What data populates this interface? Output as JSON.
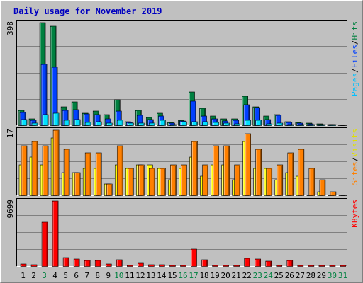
{
  "chart_data": {
    "type": "bar",
    "title": "Daily usage for November 2019",
    "categories": [
      "1",
      "2",
      "3",
      "4",
      "5",
      "6",
      "7",
      "8",
      "9",
      "10",
      "11",
      "12",
      "13",
      "14",
      "15",
      "16",
      "17",
      "18",
      "19",
      "20",
      "21",
      "22",
      "23",
      "24",
      "25",
      "26",
      "27",
      "28",
      "29",
      "30",
      "31"
    ],
    "weekend_days": [
      "3",
      "10",
      "16",
      "17",
      "23",
      "24",
      "30",
      "31"
    ],
    "panels": [
      {
        "id": "hits-files-pages",
        "ymax_label": "398",
        "ymax": 398,
        "series": [
          {
            "name": "Hits",
            "color": "#008040",
            "values": [
              58,
              26,
              398,
              384,
              70,
              90,
              48,
              55,
              40,
              100,
              15,
              58,
              30,
              48,
              10,
              19,
              130,
              67,
              37,
              24,
              26,
              113,
              72,
              35,
              40,
              15,
              10,
              8,
              6,
              4,
              0
            ]
          },
          {
            "name": "Files",
            "color": "#0040ff",
            "values": [
              50,
              18,
              236,
              226,
              58,
              60,
              45,
              42,
              25,
              56,
              12,
              38,
              22,
              35,
              7,
              16,
              92,
              35,
              24,
              16,
              20,
              80,
              68,
              22,
              38,
              12,
              8,
              5,
              4,
              2,
              0
            ]
          },
          {
            "name": "Pages",
            "color": "#00e0ff",
            "values": [
              22,
              7,
              42,
              46,
              20,
              22,
              12,
              15,
              7,
              18,
              8,
              8,
              7,
              20,
              4,
              14,
              14,
              13,
              12,
              7,
              6,
              20,
              18,
              6,
              8,
              4,
              3,
              2,
              2,
              1,
              0
            ]
          }
        ]
      },
      {
        "id": "visits-sites",
        "ymax_label": "17",
        "ymax": 17,
        "series": [
          {
            "name": "Visits",
            "color": "#ffff00",
            "values": [
              8,
              10,
              8,
              15,
              6,
              6,
              7,
              7,
              3,
              8,
              7,
              8,
              8,
              7,
              4,
              7,
              10,
              5,
              8,
              8,
              4,
              14,
              7,
              7,
              4,
              6,
              5,
              0,
              1,
              0,
              0
            ]
          },
          {
            "name": "Sites",
            "color": "#ff8000",
            "values": [
              13,
              14,
              13,
              17,
              12,
              6,
              11,
              11,
              3,
              13,
              7,
              8,
              7,
              7,
              8,
              8,
              14,
              8,
              13,
              13,
              8,
              16,
              12,
              7,
              8,
              11,
              12,
              7,
              4,
              1,
              0
            ]
          }
        ]
      },
      {
        "id": "kbytes",
        "ymax_label": "9699",
        "ymax": 9699,
        "series": [
          {
            "name": "KBytes",
            "color": "#ff0000",
            "values": [
              290,
              200,
              6500,
              9699,
              1250,
              1030,
              800,
              810,
              310,
              970,
              100,
              380,
              160,
              190,
              100,
              80,
              2500,
              930,
              130,
              130,
              130,
              1190,
              1080,
              750,
              100,
              810,
              110,
              110,
              90,
              50,
              30
            ]
          }
        ]
      }
    ],
    "right_labels": [
      [
        {
          "text": "Pages",
          "color": "#00c0ff"
        },
        {
          "text": "/",
          "color": "#000000"
        },
        {
          "text": "Files",
          "color": "#0040ff"
        },
        {
          "text": "/",
          "color": "#000000"
        },
        {
          "text": "Hits",
          "color": "#008040"
        }
      ],
      [
        {
          "text": "Sites",
          "color": "#ff8000"
        },
        {
          "text": "/",
          "color": "#000000"
        },
        {
          "text": "Visits",
          "color": "#e0e000"
        }
      ],
      [
        {
          "text": "KBytes",
          "color": "#ff0000"
        }
      ]
    ]
  }
}
